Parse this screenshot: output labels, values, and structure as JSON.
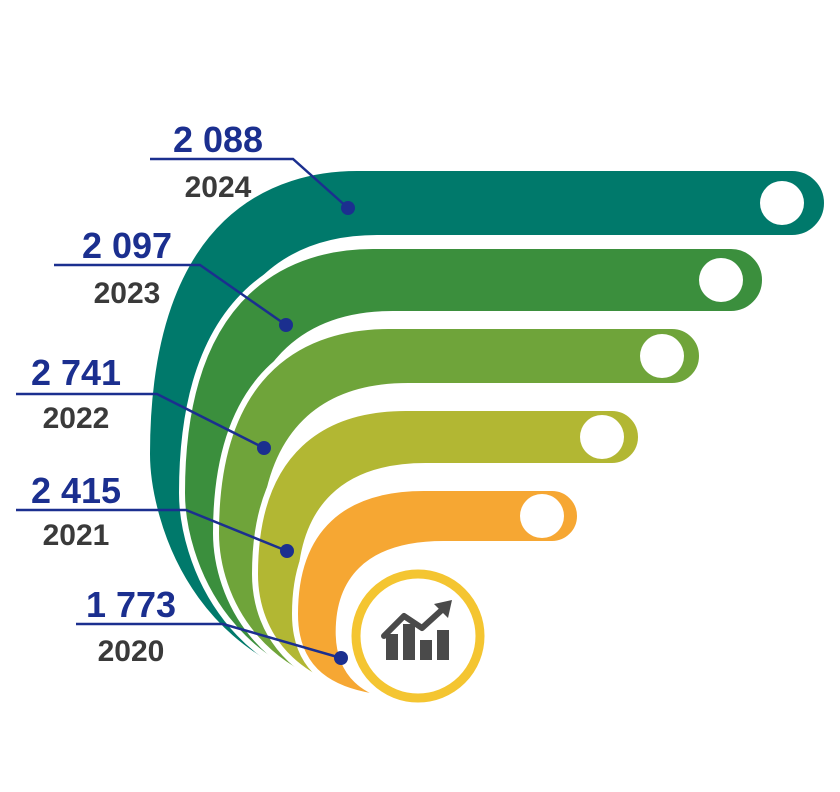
{
  "chart_data": {
    "type": "bar",
    "categories": [
      "2024",
      "2023",
      "2022",
      "2021",
      "2020"
    ],
    "values": [
      2088,
      2097,
      2741,
      2415,
      1773
    ],
    "value_labels": [
      "2 088",
      "2 097",
      "2 741",
      "2 415",
      "1 773"
    ],
    "colors": [
      "#00796b",
      "#3b8f3d",
      "#6fa43a",
      "#b2b733",
      "#f6a733"
    ],
    "value_label_color": "#1b2f8f",
    "category_label_color": "#3a3a3a",
    "leader_line_color": "#1b2f8f",
    "center_ring_color": "#f4c531",
    "center_icon": "trending-up-chart-icon",
    "center_icon_color": "#4a4a4a",
    "legend": "none",
    "grid": false
  }
}
